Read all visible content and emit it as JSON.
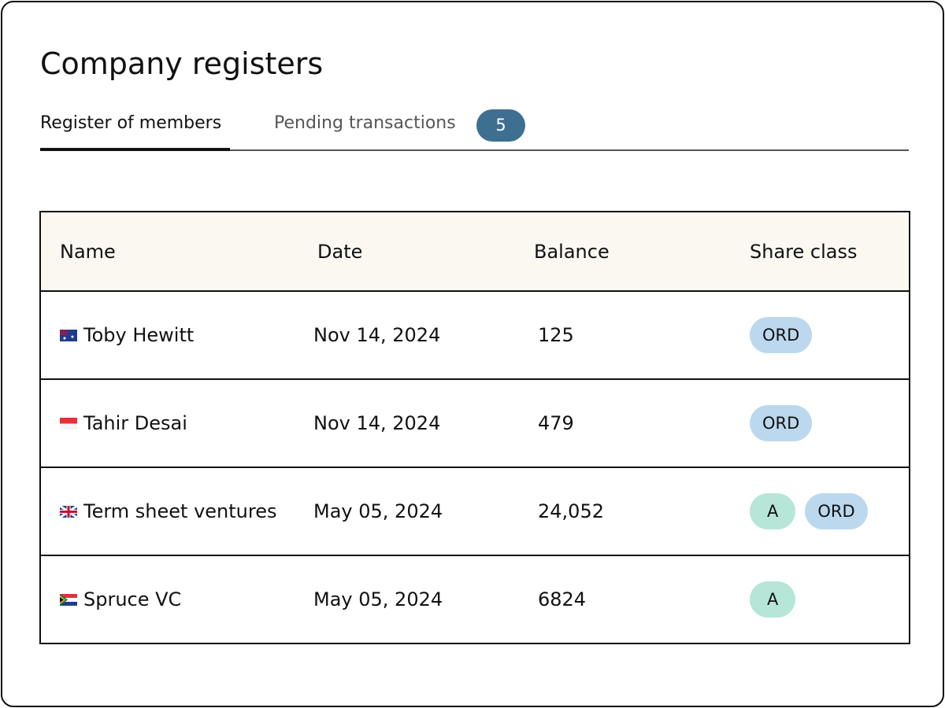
{
  "header": {
    "title": "Company registers"
  },
  "tabs": [
    {
      "label": "Register of members"
    },
    {
      "label": "Pending transactions",
      "badge": 5
    }
  ],
  "table": {
    "columns": [
      "Name",
      "Date",
      "Balance",
      "Share class"
    ],
    "rows": [
      {
        "name": "Toby Hewitt",
        "date": "Nov 14, 2024",
        "balance": "125",
        "share_classes": [
          "ORD"
        ]
      },
      {
        "name": "Tahir Desai",
        "date": "Nov 14, 2024",
        "balance": "479",
        "share_classes": [
          "ORD"
        ]
      },
      {
        "name": "Term sheet ventures",
        "date": "May 05, 2024",
        "balance": "24,052",
        "share_classes": [
          "A",
          "ORD"
        ]
      },
      {
        "name": "Spruce VC",
        "date": "May 05, 2024",
        "balance": "6824",
        "share_classes": [
          "A"
        ]
      }
    ]
  }
}
